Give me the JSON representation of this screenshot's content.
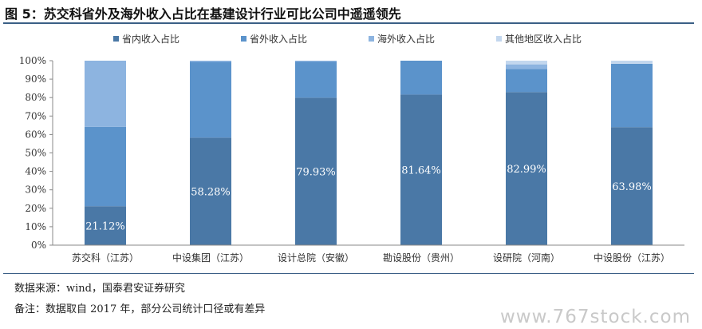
{
  "title": "图 5：苏交科省外及海外收入占比在基建设计行业可比公司中遥遥领先",
  "source": "数据来源：wind，国泰君安证券研究",
  "note": "备注：数据取自 2017 年，部分公司统计口径或有差异",
  "watermark": "www.767stock.com",
  "chart_data": {
    "type": "bar",
    "stacked": true,
    "categories": [
      "苏交科（江苏）",
      "中设集团（江苏）",
      "设计总院（安徽）",
      "勘设股份（贵州）",
      "设研院（河南）",
      "中设股份（江苏）"
    ],
    "series": [
      {
        "name": "省内收入占比",
        "color": "#4a78a6",
        "values": [
          21.12,
          58.28,
          79.93,
          81.64,
          82.99,
          63.98
        ],
        "labels": [
          "21.12%",
          "58.28%",
          "79.93%",
          "81.64%",
          "82.99%",
          "63.98%"
        ]
      },
      {
        "name": "省外收入占比",
        "color": "#5b93cb",
        "values": [
          43.0,
          41.2,
          19.6,
          18.36,
          12.5,
          34.3
        ]
      },
      {
        "name": "海外收入占比",
        "color": "#8db4e0",
        "values": [
          35.88,
          0.52,
          0.47,
          0.0,
          2.51,
          0.0
        ]
      },
      {
        "name": "其他地区收入占比",
        "color": "#c3d7ee",
        "values": [
          0.0,
          0.0,
          0.0,
          0.0,
          2.0,
          1.72
        ]
      }
    ],
    "ylim": [
      0,
      100
    ],
    "yticks": [
      "0%",
      "10%",
      "20%",
      "30%",
      "40%",
      "50%",
      "60%",
      "70%",
      "80%",
      "90%",
      "100%"
    ],
    "legend_position": "top",
    "grid": false
  }
}
